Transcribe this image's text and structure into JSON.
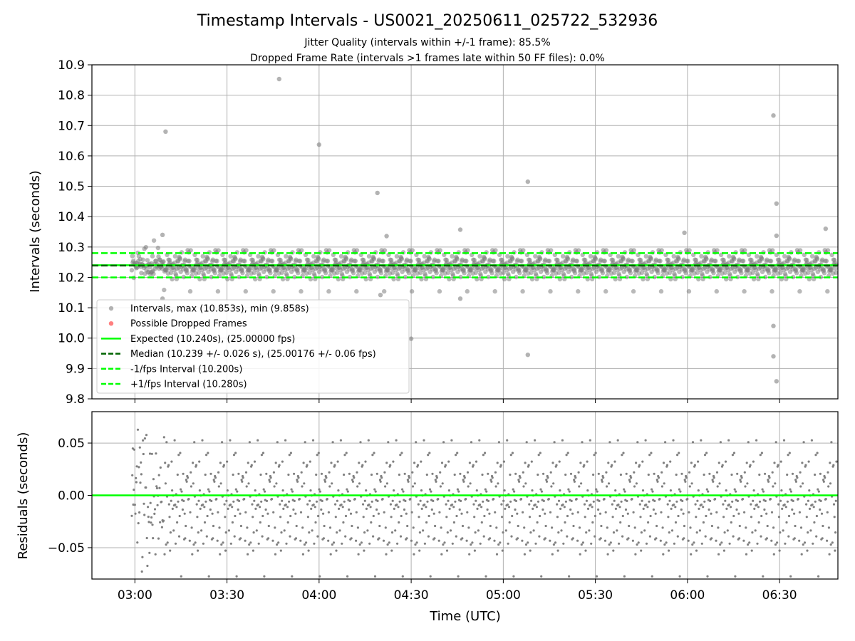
{
  "figure": {
    "title": "Timestamp Intervals - US0021_20250611_025722_532936",
    "subtitle1": "Jitter Quality (intervals within +/-1 frame): 85.5%",
    "subtitle2": "Dropped Frame Rate (intervals >1 frames late within 50 FF files): 0.0%"
  },
  "colors": {
    "points": "#808080",
    "dropped": "#ff0000",
    "expected": "#00ff00",
    "median": "#006400",
    "fps_band": "#00ff00",
    "grid": "#b0b0b0"
  },
  "chart_data": [
    {
      "type": "scatter",
      "ylabel": "Intervals (seconds)",
      "xlabel": "",
      "xlim": [
        "02:46",
        "06:49"
      ],
      "ylim": [
        9.8,
        10.9
      ],
      "yticks": [
        "9.8",
        "9.9",
        "10.0",
        "10.1",
        "10.2",
        "10.3",
        "10.4",
        "10.5",
        "10.6",
        "10.7",
        "10.8",
        "10.9"
      ],
      "grid": true,
      "legend_position": "lower-left",
      "legend": [
        "Intervals, max (10.853s), min (9.858s)",
        "Possible Dropped Frames",
        "Expected (10.240s), (25.00000 fps)",
        "Median (10.239 +/- 0.026 s), (25.00176 +/- 0.06 fps)",
        "-1/fps Interval (10.200s)",
        "+1/fps Interval (10.280s)"
      ],
      "hlines": {
        "expected": 10.24,
        "median": 10.239,
        "minus_fps": 10.2,
        "plus_fps": 10.28
      },
      "points_count": 1400,
      "outliers": [
        {
          "x": "03:10",
          "y": 10.68
        },
        {
          "x": "03:47",
          "y": 10.853
        },
        {
          "x": "04:00",
          "y": 10.637
        },
        {
          "x": "04:19",
          "y": 10.478
        },
        {
          "x": "04:30",
          "y": 9.998
        },
        {
          "x": "04:46",
          "y": 10.13
        },
        {
          "x": "04:46",
          "y": 10.357
        },
        {
          "x": "05:08",
          "y": 9.945
        },
        {
          "x": "05:08",
          "y": 10.515
        },
        {
          "x": "05:59",
          "y": 10.347
        },
        {
          "x": "06:28",
          "y": 10.733
        },
        {
          "x": "06:28",
          "y": 10.04
        },
        {
          "x": "06:28",
          "y": 9.94
        },
        {
          "x": "06:29",
          "y": 10.443
        },
        {
          "x": "06:29",
          "y": 9.858
        },
        {
          "x": "06:29",
          "y": 10.337
        },
        {
          "x": "06:45",
          "y": 10.36
        },
        {
          "x": "03:09",
          "y": 10.34
        },
        {
          "x": "03:09",
          "y": 10.13
        },
        {
          "x": "04:22",
          "y": 10.336
        },
        {
          "x": "04:20",
          "y": 10.142
        }
      ]
    },
    {
      "type": "scatter",
      "ylabel": "Residuals (seconds)",
      "xlabel": "Time (UTC)",
      "xlim": [
        "02:46",
        "06:49"
      ],
      "ylim": [
        -0.08,
        0.08
      ],
      "yticks": [
        "−0.05",
        "0.00",
        "0.05"
      ],
      "xticks": [
        "03:00",
        "03:30",
        "04:00",
        "04:30",
        "05:00",
        "05:30",
        "06:00",
        "06:30"
      ],
      "grid": true,
      "hlines": {
        "zero": 0.0
      },
      "points_count": 1400
    }
  ]
}
